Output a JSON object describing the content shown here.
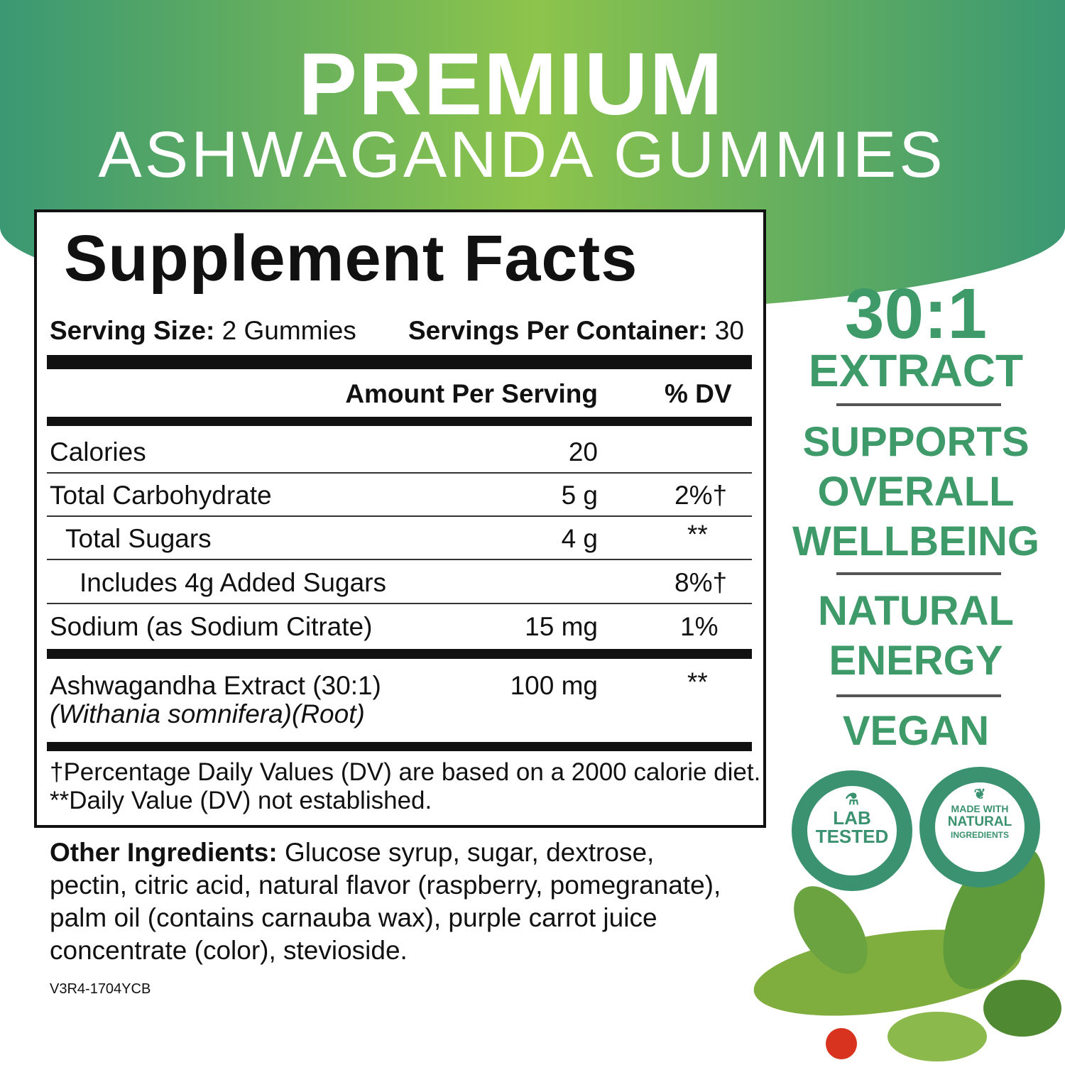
{
  "header": {
    "title": "PREMIUM",
    "subtitle": "ASHWAGANDA GUMMIES"
  },
  "facts": {
    "title": "Supplement Facts",
    "serving_size_label": "Serving Size:",
    "serving_size": "2 Gummies",
    "servings_label": "Servings Per Container:",
    "servings": "30",
    "col_amount": "Amount Per Serving",
    "col_dv": "% DV",
    "rows": [
      {
        "name": "Calories",
        "amount": "20",
        "dv": ""
      },
      {
        "name": "Total Carbohydrate",
        "amount": "5 g",
        "dv": "2%†"
      },
      {
        "name": "Total Sugars",
        "amount": "4 g",
        "dv": "**"
      },
      {
        "name": "Includes 4g Added Sugars",
        "amount": "",
        "dv": "8%†"
      },
      {
        "name": "Sodium (as Sodium Citrate)",
        "amount": "15 mg",
        "dv": "1%"
      },
      {
        "name": "Ashwagandha Extract (30:1)",
        "sub": "(Withania somnifera)(Root)",
        "amount": "100 mg",
        "dv": "**"
      }
    ],
    "footnote1": "†Percentage Daily Values (DV) are based on a 2000 calorie diet.",
    "footnote2": "**Daily Value (DV) not established."
  },
  "other": {
    "label": "Other Ingredients:",
    "line1": " Glucose syrup, sugar, dextrose,",
    "line2": "pectin, citric acid, natural flavor (raspberry, pomegranate),",
    "line3": "palm oil (contains carnauba wax), purple carrot juice",
    "line4": "concentrate (color), stevioside."
  },
  "version": "V3R4-1704YCB",
  "claims": {
    "ratio": "30:1",
    "extract": "EXTRACT",
    "c1": "SUPPORTS",
    "c2": "OVERALL",
    "c3": "WELLBEING",
    "c4": "NATURAL",
    "c5": "ENERGY",
    "c6": "VEGAN"
  },
  "badges": {
    "lab1": "LAB",
    "lab2": "TESTED",
    "nat1": "MADE WITH",
    "nat2": "NATURAL",
    "nat3": "INGREDIENTS"
  },
  "colors": {
    "brand_green": "#3f9a6a",
    "gradient_light": "#8dc44b"
  }
}
